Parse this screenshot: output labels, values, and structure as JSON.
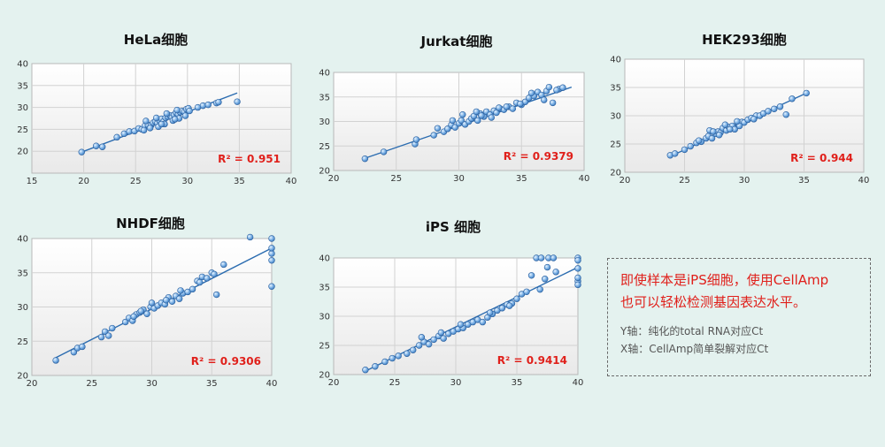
{
  "chart_data": [
    {
      "type": "scatter",
      "title": "HeLa细胞",
      "xlim": [
        15,
        40
      ],
      "ylim": [
        15,
        40
      ],
      "xticks": [
        15,
        20,
        25,
        30,
        35,
        40
      ],
      "yticks": [
        20,
        25,
        30,
        35,
        40
      ],
      "r2_label": "R² = 0.951",
      "trendline": {
        "x": [
          19.8,
          34.8
        ],
        "y": [
          19.8,
          33.3
        ]
      },
      "grid": true,
      "points": {
        "x": [
          19.8,
          21.2,
          21.8,
          23.2,
          23.9,
          24.4,
          24.9,
          25.3,
          25.6,
          25.9,
          26.2,
          26.5,
          26.7,
          26.9,
          27.1,
          27.3,
          27.5,
          27.7,
          27.9,
          28.1,
          28.3,
          28.5,
          28.7,
          28.9,
          29.1,
          29.3,
          29.5,
          29.7,
          29.9,
          30.1,
          25.8,
          26.4,
          27.2,
          27.8,
          28.6,
          29.2,
          29.8,
          27.0,
          28.0,
          29.0,
          30.2,
          26.0,
          27.5,
          28.8,
          31.5,
          32.0,
          32.8,
          33.0,
          34.8,
          31.0
        ],
        "y": [
          19.8,
          21.2,
          21.0,
          23.2,
          24.0,
          24.5,
          24.6,
          25.2,
          25.0,
          25.8,
          26.0,
          25.9,
          26.5,
          26.8,
          26.4,
          27.0,
          27.4,
          26.8,
          27.6,
          27.9,
          28.2,
          27.7,
          28.3,
          28.8,
          28.4,
          28.9,
          29.2,
          29.0,
          29.6,
          29.8,
          24.8,
          25.3,
          25.6,
          26.2,
          27.0,
          27.5,
          28.1,
          27.6,
          28.6,
          29.4,
          29.2,
          26.9,
          26.2,
          27.3,
          30.4,
          30.6,
          31.0,
          31.2,
          31.3,
          30.0
        ]
      }
    },
    {
      "type": "scatter",
      "title": "Jurkat细胞",
      "xlim": [
        20,
        40
      ],
      "ylim": [
        20,
        40
      ],
      "xticks": [
        20,
        25,
        30,
        35,
        40
      ],
      "yticks": [
        20,
        25,
        30,
        35,
        40
      ],
      "r2_label": "R² = 0.9379",
      "trendline": {
        "x": [
          22.5,
          39.0
        ],
        "y": [
          22.5,
          37.0
        ]
      },
      "grid": true,
      "points": {
        "x": [
          22.5,
          24.0,
          26.5,
          26.6,
          28.0,
          28.3,
          28.8,
          29.1,
          29.4,
          29.7,
          30.0,
          30.2,
          30.5,
          30.8,
          31.0,
          31.2,
          31.5,
          31.7,
          32.0,
          32.2,
          32.5,
          32.8,
          33.0,
          33.3,
          33.6,
          34.0,
          34.3,
          34.6,
          35.0,
          35.3,
          35.6,
          36.0,
          36.3,
          36.6,
          37.0,
          37.2,
          37.5,
          38.0,
          38.3,
          30.3,
          31.4,
          32.6,
          33.8,
          34.9,
          36.8,
          29.5,
          31.8,
          33.2,
          35.8,
          37.8
        ],
        "y": [
          22.4,
          23.8,
          25.4,
          26.3,
          27.2,
          28.6,
          27.9,
          28.5,
          29.3,
          28.8,
          29.6,
          30.2,
          29.4,
          30.0,
          30.6,
          31.1,
          30.2,
          31.6,
          31.0,
          32.0,
          31.4,
          32.2,
          31.8,
          32.6,
          32.4,
          33.0,
          32.6,
          33.8,
          33.4,
          34.0,
          34.8,
          35.2,
          36.0,
          35.4,
          36.2,
          37.0,
          33.8,
          36.6,
          36.9,
          31.4,
          32.0,
          30.8,
          33.0,
          33.6,
          34.4,
          30.2,
          31.2,
          32.8,
          35.8,
          36.4
        ]
      }
    },
    {
      "type": "scatter",
      "title": "HEK293细胞",
      "xlim": [
        20,
        40
      ],
      "ylim": [
        20,
        40
      ],
      "xticks": [
        20,
        25,
        30,
        35,
        40
      ],
      "yticks": [
        20,
        25,
        30,
        35,
        40
      ],
      "r2_label": "R² = 0.944",
      "trendline": {
        "x": [
          23.8,
          35.2
        ],
        "y": [
          22.8,
          34.0
        ]
      },
      "grid": true,
      "points": {
        "x": [
          23.8,
          24.2,
          25.0,
          25.5,
          26.0,
          26.4,
          26.8,
          27.0,
          27.3,
          27.6,
          27.8,
          28.0,
          28.2,
          28.5,
          28.7,
          29.0,
          29.2,
          29.5,
          29.8,
          30.0,
          30.3,
          30.6,
          31.0,
          31.3,
          31.6,
          32.0,
          32.5,
          33.0,
          33.5,
          34.0,
          35.2,
          27.1,
          27.9,
          28.8,
          29.6,
          30.8,
          26.2,
          27.4,
          28.4,
          29.4
        ],
        "y": [
          23.0,
          23.3,
          24.0,
          24.6,
          25.2,
          25.4,
          26.0,
          26.4,
          26.0,
          26.8,
          27.2,
          27.0,
          27.8,
          27.4,
          28.0,
          28.2,
          27.6,
          28.6,
          28.9,
          28.8,
          29.3,
          29.6,
          30.0,
          30.0,
          30.4,
          30.8,
          31.2,
          31.6,
          30.2,
          33.0,
          34.0,
          27.4,
          26.6,
          27.6,
          28.2,
          29.4,
          25.6,
          27.2,
          28.4,
          29.0
        ]
      }
    },
    {
      "type": "scatter",
      "title": "NHDF细胞",
      "xlim": [
        20,
        40
      ],
      "ylim": [
        20,
        40
      ],
      "xticks": [
        20,
        25,
        30,
        35,
        40
      ],
      "yticks": [
        20,
        25,
        30,
        35,
        40
      ],
      "r2_label": "R² = 0.9306",
      "trendline": {
        "x": [
          22.0,
          40.0
        ],
        "y": [
          22.6,
          38.6
        ]
      },
      "grid": true,
      "points": {
        "x": [
          22.0,
          23.5,
          23.8,
          24.2,
          25.8,
          26.1,
          26.4,
          26.7,
          27.8,
          28.1,
          28.4,
          28.7,
          29.0,
          29.3,
          29.6,
          29.9,
          30.2,
          30.5,
          30.8,
          31.1,
          31.4,
          31.7,
          32.0,
          32.3,
          32.6,
          33.0,
          33.4,
          33.8,
          34.2,
          34.6,
          35.0,
          35.4,
          36.0,
          38.2,
          40.0,
          40.0,
          40.0,
          40.0,
          40.0,
          28.5,
          29.1,
          30.0,
          31.2,
          32.4,
          34.0,
          35.2
        ],
        "y": [
          22.2,
          23.4,
          24.0,
          24.2,
          25.6,
          26.4,
          25.8,
          26.9,
          27.8,
          28.4,
          28.0,
          28.9,
          29.2,
          29.6,
          29.0,
          30.0,
          29.8,
          30.2,
          30.6,
          30.4,
          31.4,
          30.8,
          31.6,
          31.2,
          32.0,
          32.2,
          32.6,
          33.8,
          34.4,
          34.2,
          35.0,
          31.8,
          36.2,
          40.2,
          40.0,
          37.8,
          36.8,
          33.0,
          38.6,
          28.6,
          29.4,
          30.6,
          31.0,
          32.4,
          33.6,
          34.8
        ]
      }
    },
    {
      "type": "scatter",
      "title": "iPS 细胞",
      "xlim": [
        20,
        40
      ],
      "ylim": [
        20,
        40
      ],
      "xticks": [
        20,
        25,
        30,
        35,
        40
      ],
      "yticks": [
        20,
        25,
        30,
        35,
        40
      ],
      "r2_label": "R² = 0.9414",
      "trendline": {
        "x": [
          22.8,
          40.0
        ],
        "y": [
          20.8,
          38.4
        ]
      },
      "grid": true,
      "points": {
        "x": [
          22.6,
          23.4,
          24.2,
          24.8,
          25.3,
          26.0,
          26.5,
          27.0,
          27.4,
          27.8,
          28.2,
          28.6,
          29.0,
          29.4,
          29.8,
          30.2,
          30.6,
          31.0,
          31.4,
          31.8,
          32.2,
          32.6,
          33.0,
          33.4,
          33.8,
          34.2,
          34.6,
          35.0,
          35.4,
          35.8,
          36.2,
          36.6,
          37.0,
          37.3,
          37.6,
          38.0,
          40.0,
          40.0,
          40.0,
          40.0,
          40.0,
          40.0,
          36.9,
          37.5,
          38.2,
          27.2,
          28.8,
          30.4,
          32.8,
          34.4
        ],
        "y": [
          20.8,
          21.4,
          22.2,
          22.8,
          23.2,
          23.6,
          24.2,
          25.0,
          25.6,
          25.2,
          26.0,
          26.6,
          26.2,
          27.0,
          27.4,
          27.8,
          28.0,
          28.6,
          29.0,
          29.4,
          29.0,
          29.8,
          30.4,
          31.0,
          31.4,
          32.0,
          32.2,
          33.0,
          33.8,
          34.2,
          37.0,
          40.0,
          40.0,
          36.4,
          40.0,
          40.0,
          40.0,
          39.6,
          36.0,
          35.4,
          36.6,
          38.2,
          34.6,
          38.4,
          37.6,
          26.4,
          27.2,
          28.6,
          30.6,
          31.8
        ]
      }
    }
  ],
  "note": {
    "red_lines": [
      "即使样本是iPS细胞，使用CellAmp",
      "也可以轻松检测基因表达水平。"
    ],
    "grey_lines": [
      "Y轴：纯化的total  RNA对应Ct",
      "X轴：CellAmp简单裂解对应Ct"
    ]
  }
}
